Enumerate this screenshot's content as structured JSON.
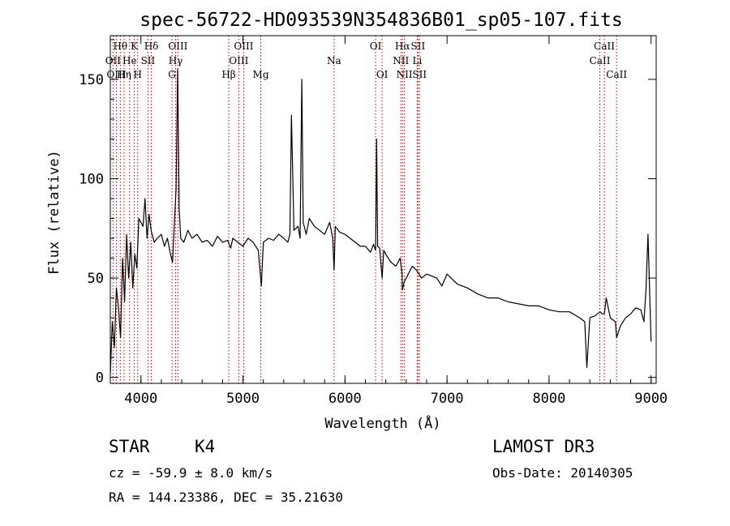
{
  "chart_data": {
    "type": "line",
    "title": "spec-56722-HD093539N354836B01_sp05-107.fits",
    "xlabel": "Wavelength (Å)",
    "ylabel": "Flux (relative)",
    "xlim": [
      3700,
      9050
    ],
    "ylim": [
      -3,
      172
    ],
    "xticks": [
      4000,
      5000,
      6000,
      7000,
      8000,
      9000
    ],
    "yticks": [
      0,
      50,
      100,
      150
    ],
    "series": [
      {
        "name": "flux",
        "x": [
          3700,
          3720,
          3740,
          3760,
          3780,
          3800,
          3820,
          3840,
          3860,
          3880,
          3900,
          3920,
          3940,
          3960,
          3980,
          4000,
          4020,
          4040,
          4060,
          4080,
          4100,
          4130,
          4160,
          4200,
          4230,
          4260,
          4290,
          4310,
          4330,
          4345,
          4360,
          4375,
          4390,
          4420,
          4460,
          4500,
          4550,
          4600,
          4650,
          4700,
          4750,
          4800,
          4850,
          4880,
          4900,
          4950,
          5000,
          5050,
          5100,
          5150,
          5180,
          5200,
          5250,
          5300,
          5350,
          5400,
          5440,
          5460,
          5475,
          5500,
          5540,
          5560,
          5577,
          5590,
          5620,
          5650,
          5700,
          5750,
          5800,
          5850,
          5880,
          5893,
          5905,
          5950,
          6000,
          6050,
          6100,
          6150,
          6200,
          6250,
          6280,
          6300,
          6310,
          6320,
          6340,
          6364,
          6380,
          6400,
          6450,
          6500,
          6540,
          6560,
          6563,
          6580,
          6620,
          6660,
          6700,
          6750,
          6800,
          6850,
          6900,
          6950,
          7000,
          7100,
          7200,
          7300,
          7400,
          7500,
          7600,
          7700,
          7800,
          7900,
          8000,
          8100,
          8200,
          8300,
          8350,
          8370,
          8400,
          8450,
          8500,
          8520,
          8542,
          8560,
          8600,
          8650,
          8662,
          8700,
          8750,
          8800,
          8850,
          8900,
          8930,
          8950,
          8970,
          9000
        ],
        "values": [
          2,
          28,
          15,
          45,
          35,
          20,
          60,
          38,
          72,
          50,
          68,
          45,
          62,
          55,
          80,
          78,
          76,
          90,
          70,
          82,
          74,
          68,
          70,
          72,
          66,
          70,
          62,
          58,
          80,
          95,
          155,
          85,
          70,
          68,
          74,
          70,
          72,
          68,
          69,
          66,
          71,
          68,
          69,
          65,
          70,
          68,
          66,
          70,
          68,
          64,
          46,
          68,
          70,
          69,
          72,
          70,
          68,
          72,
          132,
          74,
          76,
          70,
          150,
          78,
          72,
          80,
          76,
          74,
          72,
          78,
          70,
          54,
          76,
          73,
          72,
          70,
          68,
          66,
          66,
          63,
          67,
          64,
          120,
          66,
          65,
          50,
          64,
          62,
          58,
          56,
          60,
          52,
          44,
          48,
          52,
          56,
          54,
          50,
          52,
          51,
          50,
          46,
          52,
          47,
          45,
          42,
          40,
          40,
          38,
          37,
          36,
          36,
          34,
          33,
          33,
          30,
          28,
          5,
          30,
          31,
          33,
          32,
          32,
          40,
          30,
          28,
          20,
          26,
          30,
          32,
          35,
          34,
          28,
          44,
          72,
          18
        ]
      }
    ],
    "spectral_lines": [
      {
        "label": "Hθ",
        "wl": 3798,
        "row": 0
      },
      {
        "label": "OII",
        "wl": 3727,
        "row": 1
      },
      {
        "label": "OIII",
        "wl": 3760,
        "row": 2
      },
      {
        "label": "He",
        "wl": 3889,
        "row": 1
      },
      {
        "label": "Hη",
        "wl": 3835,
        "row": 2
      },
      {
        "label": "K",
        "wl": 3934,
        "row": 0
      },
      {
        "label": "SII",
        "wl": 4069,
        "row": 1
      },
      {
        "label": "H",
        "wl": 3968,
        "row": 2
      },
      {
        "label": "Hδ",
        "wl": 4102,
        "row": 0
      },
      {
        "label": "OIII",
        "wl": 4363,
        "row": 0
      },
      {
        "label": "Hγ",
        "wl": 4340,
        "row": 1
      },
      {
        "label": "G",
        "wl": 4305,
        "row": 2
      },
      {
        "label": "OIII",
        "wl": 5007,
        "row": 0
      },
      {
        "label": "OIII",
        "wl": 4959,
        "row": 1
      },
      {
        "label": "Hβ",
        "wl": 4861,
        "row": 2
      },
      {
        "label": "Mg",
        "wl": 5175,
        "row": 2
      },
      {
        "label": "Na",
        "wl": 5893,
        "row": 1
      },
      {
        "label": "OI",
        "wl": 6300,
        "row": 0
      },
      {
        "label": "OI",
        "wl": 6364,
        "row": 2
      },
      {
        "label": "Hα",
        "wl": 6563,
        "row": 0
      },
      {
        "label": "SII",
        "wl": 6716,
        "row": 0
      },
      {
        "label": "NII",
        "wl": 6548,
        "row": 1
      },
      {
        "label": "Li",
        "wl": 6708,
        "row": 1
      },
      {
        "label": "NII",
        "wl": 6583,
        "row": 2
      },
      {
        "label": "SII",
        "wl": 6731,
        "row": 2
      },
      {
        "label": "CaII",
        "wl": 8542,
        "row": 0
      },
      {
        "label": "CaII",
        "wl": 8498,
        "row": 1
      },
      {
        "label": "CaII",
        "wl": 8662,
        "row": 2
      }
    ],
    "colors": {
      "line": "#000000",
      "marker": "#cc0000",
      "axis": "#000000"
    }
  },
  "info": {
    "object_class": "STAR",
    "subclass": "K4",
    "survey": "LAMOST DR3",
    "redshift": "cz = -59.9 ± 8.0 km/s",
    "obs_date": "Obs-Date: 20140305",
    "coords": "RA = 144.23386, DEC =  35.21630"
  }
}
